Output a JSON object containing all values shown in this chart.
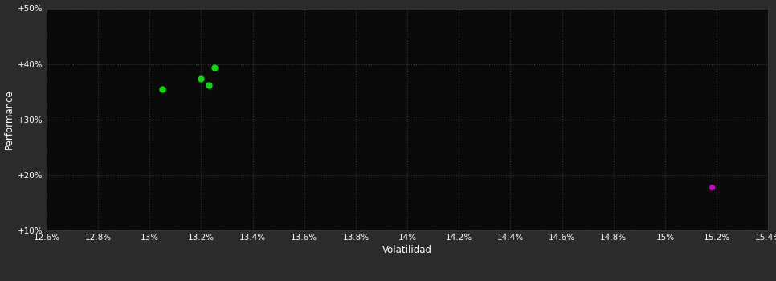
{
  "background_color": "#2b2b2b",
  "plot_bg_color": "#0a0a0a",
  "grid_color": "#3a3a3a",
  "text_color": "#ffffff",
  "xlabel": "Volatilidad",
  "ylabel": "Performance",
  "xlim": [
    0.126,
    0.154
  ],
  "ylim": [
    0.1,
    0.5
  ],
  "xticks": [
    0.126,
    0.128,
    0.13,
    0.132,
    0.134,
    0.136,
    0.138,
    0.14,
    0.142,
    0.144,
    0.146,
    0.148,
    0.15,
    0.152,
    0.154
  ],
  "yticks": [
    0.1,
    0.2,
    0.3,
    0.4,
    0.5
  ],
  "ytick_labels": [
    "+10%",
    "+20%",
    "+30%",
    "+40%",
    "+50%"
  ],
  "xtick_labels": [
    "12.6%",
    "12.8%",
    "13%",
    "13.2%",
    "13.4%",
    "13.6%",
    "13.8%",
    "14%",
    "14.2%",
    "14.4%",
    "14.6%",
    "14.8%",
    "15%",
    "15.2%",
    "15.4%"
  ],
  "green_points": [
    [
      0.1305,
      0.354
    ],
    [
      0.132,
      0.373
    ],
    [
      0.1323,
      0.362
    ],
    [
      0.1325,
      0.393
    ]
  ],
  "magenta_points": [
    [
      0.1518,
      0.178
    ]
  ],
  "green_color": "#00dd00",
  "magenta_color": "#cc00cc",
  "point_size": 25,
  "magenta_point_size": 18
}
